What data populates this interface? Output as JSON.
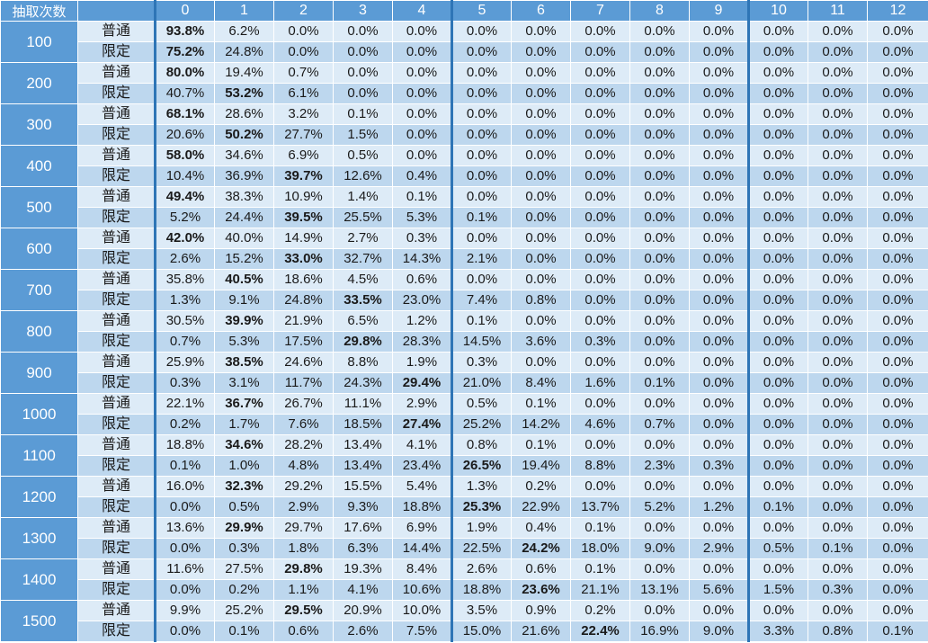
{
  "chart_data": {
    "type": "table",
    "corner_label": "抽取次数",
    "columns": [
      "0",
      "1",
      "2",
      "3",
      "4",
      "5",
      "6",
      "7",
      "8",
      "9",
      "10",
      "11",
      "12"
    ],
    "row_types": [
      "普通",
      "限定"
    ],
    "groups": [
      {
        "draws": "100",
        "rows": [
          [
            "93.8%",
            "6.2%",
            "0.0%",
            "0.0%",
            "0.0%",
            "0.0%",
            "0.0%",
            "0.0%",
            "0.0%",
            "0.0%",
            "0.0%",
            "0.0%",
            "0.0%"
          ],
          [
            "75.2%",
            "24.8%",
            "0.0%",
            "0.0%",
            "0.0%",
            "0.0%",
            "0.0%",
            "0.0%",
            "0.0%",
            "0.0%",
            "0.0%",
            "0.0%",
            "0.0%"
          ]
        ]
      },
      {
        "draws": "200",
        "rows": [
          [
            "80.0%",
            "19.4%",
            "0.7%",
            "0.0%",
            "0.0%",
            "0.0%",
            "0.0%",
            "0.0%",
            "0.0%",
            "0.0%",
            "0.0%",
            "0.0%",
            "0.0%"
          ],
          [
            "40.7%",
            "53.2%",
            "6.1%",
            "0.0%",
            "0.0%",
            "0.0%",
            "0.0%",
            "0.0%",
            "0.0%",
            "0.0%",
            "0.0%",
            "0.0%",
            "0.0%"
          ]
        ]
      },
      {
        "draws": "300",
        "rows": [
          [
            "68.1%",
            "28.6%",
            "3.2%",
            "0.1%",
            "0.0%",
            "0.0%",
            "0.0%",
            "0.0%",
            "0.0%",
            "0.0%",
            "0.0%",
            "0.0%",
            "0.0%"
          ],
          [
            "20.6%",
            "50.2%",
            "27.7%",
            "1.5%",
            "0.0%",
            "0.0%",
            "0.0%",
            "0.0%",
            "0.0%",
            "0.0%",
            "0.0%",
            "0.0%",
            "0.0%"
          ]
        ]
      },
      {
        "draws": "400",
        "rows": [
          [
            "58.0%",
            "34.6%",
            "6.9%",
            "0.5%",
            "0.0%",
            "0.0%",
            "0.0%",
            "0.0%",
            "0.0%",
            "0.0%",
            "0.0%",
            "0.0%",
            "0.0%"
          ],
          [
            "10.4%",
            "36.9%",
            "39.7%",
            "12.6%",
            "0.4%",
            "0.0%",
            "0.0%",
            "0.0%",
            "0.0%",
            "0.0%",
            "0.0%",
            "0.0%",
            "0.0%"
          ]
        ]
      },
      {
        "draws": "500",
        "rows": [
          [
            "49.4%",
            "38.3%",
            "10.9%",
            "1.4%",
            "0.1%",
            "0.0%",
            "0.0%",
            "0.0%",
            "0.0%",
            "0.0%",
            "0.0%",
            "0.0%",
            "0.0%"
          ],
          [
            "5.2%",
            "24.4%",
            "39.5%",
            "25.5%",
            "5.3%",
            "0.1%",
            "0.0%",
            "0.0%",
            "0.0%",
            "0.0%",
            "0.0%",
            "0.0%",
            "0.0%"
          ]
        ]
      },
      {
        "draws": "600",
        "rows": [
          [
            "42.0%",
            "40.0%",
            "14.9%",
            "2.7%",
            "0.3%",
            "0.0%",
            "0.0%",
            "0.0%",
            "0.0%",
            "0.0%",
            "0.0%",
            "0.0%",
            "0.0%"
          ],
          [
            "2.6%",
            "15.2%",
            "33.0%",
            "32.7%",
            "14.3%",
            "2.1%",
            "0.0%",
            "0.0%",
            "0.0%",
            "0.0%",
            "0.0%",
            "0.0%",
            "0.0%"
          ]
        ]
      },
      {
        "draws": "700",
        "rows": [
          [
            "35.8%",
            "40.5%",
            "18.6%",
            "4.5%",
            "0.6%",
            "0.0%",
            "0.0%",
            "0.0%",
            "0.0%",
            "0.0%",
            "0.0%",
            "0.0%",
            "0.0%"
          ],
          [
            "1.3%",
            "9.1%",
            "24.8%",
            "33.5%",
            "23.0%",
            "7.4%",
            "0.8%",
            "0.0%",
            "0.0%",
            "0.0%",
            "0.0%",
            "0.0%",
            "0.0%"
          ]
        ]
      },
      {
        "draws": "800",
        "rows": [
          [
            "30.5%",
            "39.9%",
            "21.9%",
            "6.5%",
            "1.2%",
            "0.1%",
            "0.0%",
            "0.0%",
            "0.0%",
            "0.0%",
            "0.0%",
            "0.0%",
            "0.0%"
          ],
          [
            "0.7%",
            "5.3%",
            "17.5%",
            "29.8%",
            "28.3%",
            "14.5%",
            "3.6%",
            "0.3%",
            "0.0%",
            "0.0%",
            "0.0%",
            "0.0%",
            "0.0%"
          ]
        ]
      },
      {
        "draws": "900",
        "rows": [
          [
            "25.9%",
            "38.5%",
            "24.6%",
            "8.8%",
            "1.9%",
            "0.3%",
            "0.0%",
            "0.0%",
            "0.0%",
            "0.0%",
            "0.0%",
            "0.0%",
            "0.0%"
          ],
          [
            "0.3%",
            "3.1%",
            "11.7%",
            "24.3%",
            "29.4%",
            "21.0%",
            "8.4%",
            "1.6%",
            "0.1%",
            "0.0%",
            "0.0%",
            "0.0%",
            "0.0%"
          ]
        ]
      },
      {
        "draws": "1000",
        "rows": [
          [
            "22.1%",
            "36.7%",
            "26.7%",
            "11.1%",
            "2.9%",
            "0.5%",
            "0.1%",
            "0.0%",
            "0.0%",
            "0.0%",
            "0.0%",
            "0.0%",
            "0.0%"
          ],
          [
            "0.2%",
            "1.7%",
            "7.6%",
            "18.5%",
            "27.4%",
            "25.2%",
            "14.2%",
            "4.6%",
            "0.7%",
            "0.0%",
            "0.0%",
            "0.0%",
            "0.0%"
          ]
        ]
      },
      {
        "draws": "1100",
        "rows": [
          [
            "18.8%",
            "34.6%",
            "28.2%",
            "13.4%",
            "4.1%",
            "0.8%",
            "0.1%",
            "0.0%",
            "0.0%",
            "0.0%",
            "0.0%",
            "0.0%",
            "0.0%"
          ],
          [
            "0.1%",
            "1.0%",
            "4.8%",
            "13.4%",
            "23.4%",
            "26.5%",
            "19.4%",
            "8.8%",
            "2.3%",
            "0.3%",
            "0.0%",
            "0.0%",
            "0.0%"
          ]
        ]
      },
      {
        "draws": "1200",
        "rows": [
          [
            "16.0%",
            "32.3%",
            "29.2%",
            "15.5%",
            "5.4%",
            "1.3%",
            "0.2%",
            "0.0%",
            "0.0%",
            "0.0%",
            "0.0%",
            "0.0%",
            "0.0%"
          ],
          [
            "0.0%",
            "0.5%",
            "2.9%",
            "9.3%",
            "18.8%",
            "25.3%",
            "22.9%",
            "13.7%",
            "5.2%",
            "1.2%",
            "0.1%",
            "0.0%",
            "0.0%"
          ]
        ]
      },
      {
        "draws": "1300",
        "rows": [
          [
            "13.6%",
            "29.9%",
            "29.7%",
            "17.6%",
            "6.9%",
            "1.9%",
            "0.4%",
            "0.1%",
            "0.0%",
            "0.0%",
            "0.0%",
            "0.0%",
            "0.0%"
          ],
          [
            "0.0%",
            "0.3%",
            "1.8%",
            "6.3%",
            "14.4%",
            "22.5%",
            "24.2%",
            "18.0%",
            "9.0%",
            "2.9%",
            "0.5%",
            "0.1%",
            "0.0%"
          ]
        ]
      },
      {
        "draws": "1400",
        "rows": [
          [
            "11.6%",
            "27.5%",
            "29.8%",
            "19.3%",
            "8.4%",
            "2.6%",
            "0.6%",
            "0.1%",
            "0.0%",
            "0.0%",
            "0.0%",
            "0.0%",
            "0.0%"
          ],
          [
            "0.0%",
            "0.2%",
            "1.1%",
            "4.1%",
            "10.6%",
            "18.8%",
            "23.6%",
            "21.1%",
            "13.1%",
            "5.6%",
            "1.5%",
            "0.3%",
            "0.0%"
          ]
        ]
      },
      {
        "draws": "1500",
        "rows": [
          [
            "9.9%",
            "25.2%",
            "29.5%",
            "20.9%",
            "10.0%",
            "3.5%",
            "0.9%",
            "0.2%",
            "0.0%",
            "0.0%",
            "0.0%",
            "0.0%",
            "0.0%"
          ],
          [
            "0.0%",
            "0.1%",
            "0.6%",
            "2.6%",
            "7.5%",
            "15.0%",
            "21.6%",
            "22.4%",
            "16.9%",
            "9.0%",
            "3.3%",
            "0.8%",
            "0.1%"
          ]
        ]
      }
    ],
    "colors": {
      "header": "#5b9bd5",
      "row_normal": "#ddebf7",
      "row_limited": "#bdd7ee",
      "separator": "#2e75b6"
    }
  }
}
